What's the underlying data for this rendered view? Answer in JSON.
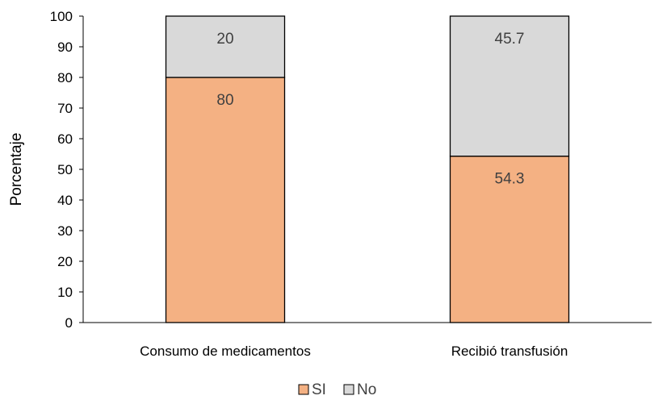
{
  "chart_data": {
    "type": "bar",
    "stacked": true,
    "title": "",
    "xlabel": "",
    "ylabel": "Porcentaje",
    "ylim": [
      0,
      100
    ],
    "yticks": [
      0,
      10,
      20,
      30,
      40,
      50,
      60,
      70,
      80,
      90,
      100
    ],
    "categories": [
      "Consumo de medicamentos",
      "Recibió transfusión"
    ],
    "series": [
      {
        "name": "SI",
        "values": [
          80,
          54.3
        ],
        "labels": [
          "80",
          "54.3"
        ],
        "color": "#F4B183"
      },
      {
        "name": "No",
        "values": [
          20,
          45.7
        ],
        "labels": [
          "20",
          "45.7"
        ],
        "color": "#D9D9D9"
      }
    ],
    "grid": false,
    "legend_position": "bottom"
  }
}
